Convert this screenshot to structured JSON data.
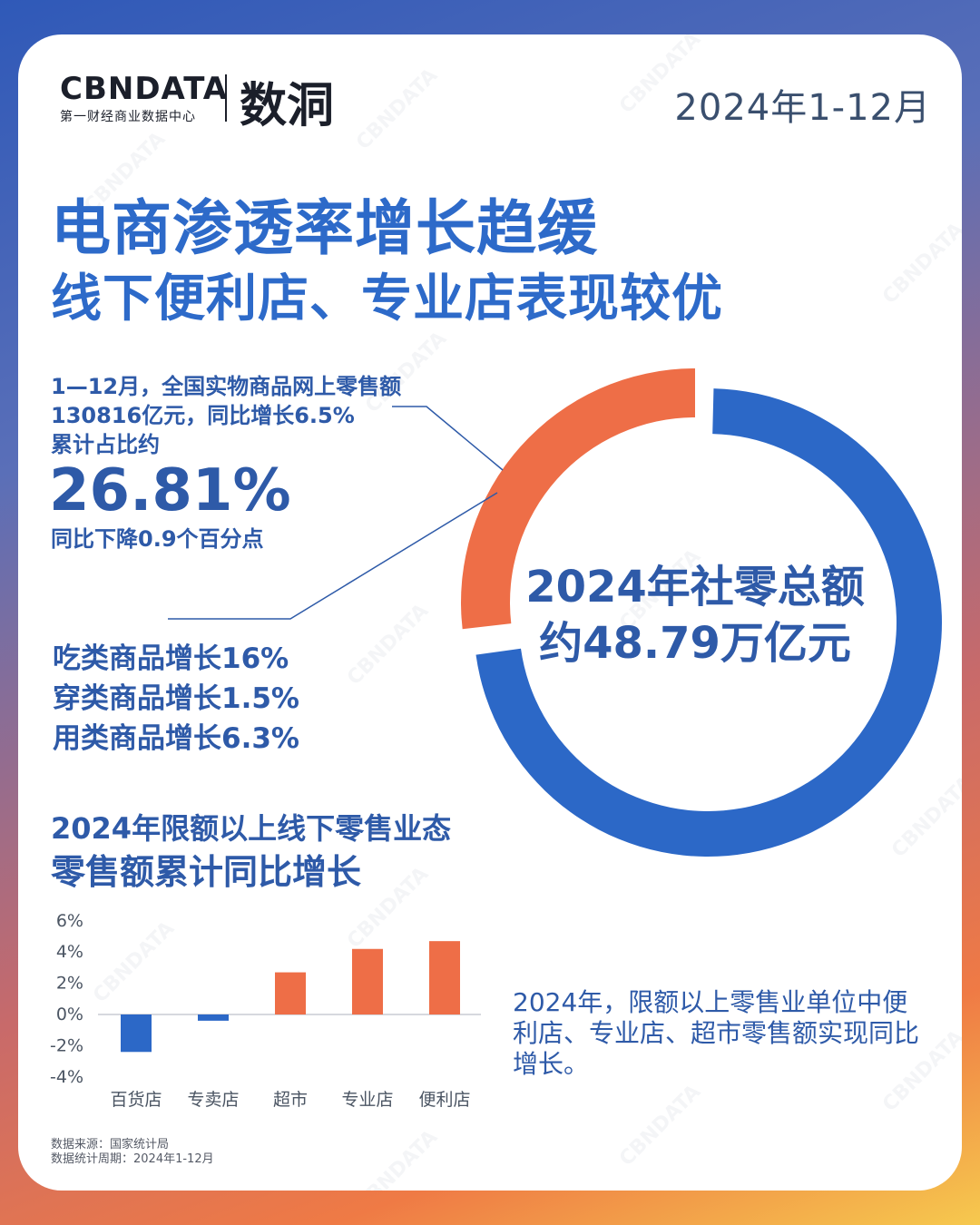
{
  "brand": {
    "logo_main": "CBNDATA",
    "logo_sub": "第一财经商业数据中心",
    "logo_partner": "数洞",
    "watermark": "CBNDATA"
  },
  "period": "2024年1-12月",
  "headline": {
    "line1": "电商渗透率增长趋缓",
    "line2": "线下便利店、专业店表现较优"
  },
  "online_share": {
    "desc_line1": "1—12月，全国实物商品网上零售额",
    "desc_line2": "130816亿元，同比增长6.5%",
    "desc_line3": "累计占比约",
    "value_text": "26.81%",
    "change_text": "同比下降0.9个百分点"
  },
  "category_growth": [
    "吃类商品增长16%",
    "穿类商品增长1.5%",
    "用类商品增长6.3%"
  ],
  "donut": {
    "center_line1": "2024年社零总额",
    "center_line2": "约48.79万亿元",
    "share": 26.81,
    "share_color": "#ee6e47",
    "rest_color": "#2c68c7"
  },
  "bar_section": {
    "title_line1": "2024年限额以上线下零售业态",
    "title_line2": "零售额累计同比增长"
  },
  "chart_data": {
    "type": "bar",
    "categories": [
      "百货店",
      "专卖店",
      "超市",
      "专业店",
      "便利店"
    ],
    "values": [
      -2.4,
      -0.4,
      2.7,
      4.2,
      4.7
    ],
    "colors": [
      "#2c68c7",
      "#2c68c7",
      "#ee6e47",
      "#ee6e47",
      "#ee6e47"
    ],
    "ylim": [
      -4,
      6
    ],
    "yticks": [
      "6%",
      "4%",
      "2%",
      "0%",
      "-2%",
      "-4%"
    ],
    "title": "",
    "xlabel": "",
    "ylabel": ""
  },
  "chart_note": "2024年，限额以上零售业单位中便利店、专业店、超市零售额实现同比增长。",
  "source": {
    "line1": "数据来源：国家统计局",
    "line2": "数据统计周期：2024年1-12月"
  }
}
